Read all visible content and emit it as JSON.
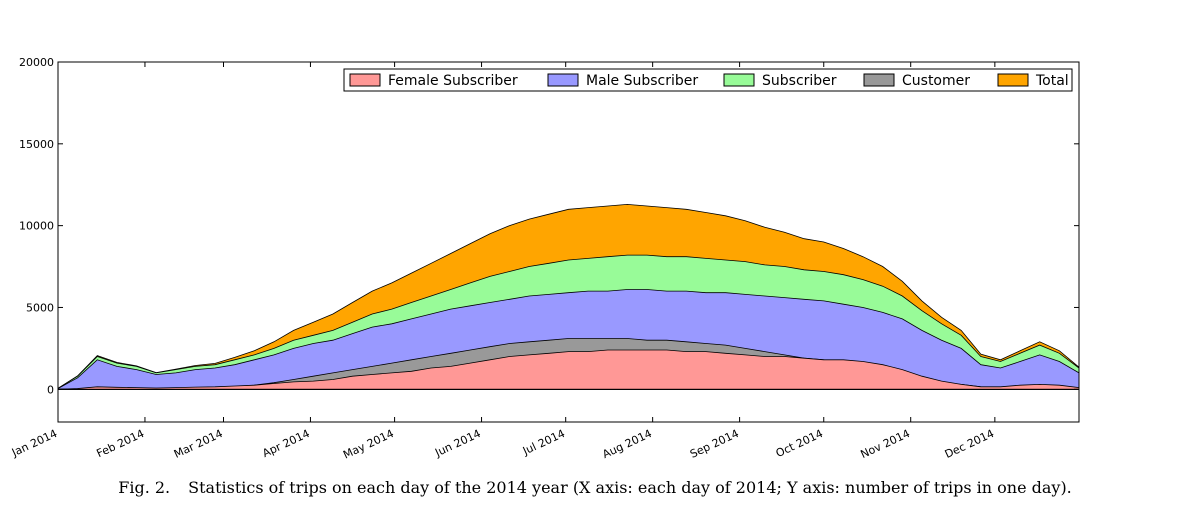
{
  "caption": {
    "label": "Fig. 2.",
    "text": "Statistics of trips on each day of the 2014 year (X axis: each day of 2014; Y axis: number of trips in one day)."
  },
  "chart_data": {
    "type": "area",
    "title": "",
    "xlabel": "",
    "ylabel": "",
    "x_range": [
      "2014-01-01",
      "2014-12-31"
    ],
    "x_tick_labels": [
      "Jan 2014",
      "Feb 2014",
      "Mar 2014",
      "Apr 2014",
      "May 2014",
      "Jun 2014",
      "Jul 2014",
      "Aug 2014",
      "Sep 2014",
      "Oct 2014",
      "Nov 2014",
      "Dec 2014"
    ],
    "ylim": [
      -2000,
      20000
    ],
    "y_ticks": [
      0,
      5000,
      10000,
      15000,
      20000
    ],
    "legend_position": "top-right",
    "grid": false,
    "sampling": "weekly approximation of daily counts (week start dates)",
    "x": [
      "2014-01-01",
      "2014-01-08",
      "2014-01-15",
      "2014-01-22",
      "2014-01-29",
      "2014-02-05",
      "2014-02-12",
      "2014-02-19",
      "2014-02-26",
      "2014-03-05",
      "2014-03-12",
      "2014-03-19",
      "2014-03-26",
      "2014-04-02",
      "2014-04-09",
      "2014-04-16",
      "2014-04-23",
      "2014-04-30",
      "2014-05-07",
      "2014-05-14",
      "2014-05-21",
      "2014-05-28",
      "2014-06-04",
      "2014-06-11",
      "2014-06-18",
      "2014-06-25",
      "2014-07-02",
      "2014-07-09",
      "2014-07-16",
      "2014-07-23",
      "2014-07-30",
      "2014-08-06",
      "2014-08-13",
      "2014-08-20",
      "2014-08-27",
      "2014-09-03",
      "2014-09-10",
      "2014-09-17",
      "2014-09-24",
      "2014-10-01",
      "2014-10-08",
      "2014-10-15",
      "2014-10-22",
      "2014-10-29",
      "2014-11-05",
      "2014-11-12",
      "2014-11-19",
      "2014-11-26",
      "2014-12-03",
      "2014-12-10",
      "2014-12-17",
      "2014-12-24",
      "2014-12-31"
    ],
    "series": [
      {
        "name": "Female Subscriber",
        "color": "#ff9896",
        "values": [
          0,
          50,
          150,
          120,
          100,
          80,
          100,
          130,
          150,
          200,
          250,
          350,
          450,
          500,
          600,
          800,
          900,
          1000,
          1100,
          1300,
          1400,
          1600,
          1800,
          2000,
          2100,
          2200,
          2300,
          2300,
          2400,
          2400,
          2400,
          2400,
          2300,
          2300,
          2200,
          2100,
          2000,
          2000,
          1900,
          1800,
          1800,
          1700,
          1500,
          1200,
          800,
          500,
          300,
          150,
          150,
          250,
          300,
          250,
          100
        ]
      },
      {
        "name": "Male Subscriber",
        "color": "#9999ff",
        "values": [
          50,
          700,
          1800,
          1400,
          1200,
          900,
          1000,
          1200,
          1300,
          1500,
          1800,
          2100,
          2500,
          2800,
          3000,
          3400,
          3800,
          4000,
          4300,
          4600,
          4900,
          5100,
          5300,
          5500,
          5700,
          5800,
          5900,
          6000,
          6000,
          6100,
          6100,
          6000,
          6000,
          5900,
          5900,
          5800,
          5700,
          5600,
          5500,
          5400,
          5200,
          5000,
          4700,
          4300,
          3600,
          3000,
          2500,
          1500,
          1300,
          1700,
          2100,
          1700,
          1000
        ]
      },
      {
        "name": "Subscriber",
        "color": "#98fb98",
        "values": [
          60,
          800,
          2000,
          1600,
          1400,
          1000,
          1200,
          1400,
          1500,
          1800,
          2100,
          2500,
          3000,
          3300,
          3600,
          4100,
          4600,
          4900,
          5300,
          5700,
          6100,
          6500,
          6900,
          7200,
          7500,
          7700,
          7900,
          8000,
          8100,
          8200,
          8200,
          8100,
          8100,
          8000,
          7900,
          7800,
          7600,
          7500,
          7300,
          7200,
          7000,
          6700,
          6300,
          5700,
          4800,
          4000,
          3300,
          2000,
          1700,
          2200,
          2700,
          2200,
          1300
        ]
      },
      {
        "name": "Customer",
        "color": "#999999",
        "values": [
          5,
          20,
          60,
          40,
          30,
          20,
          30,
          50,
          80,
          150,
          250,
          400,
          600,
          800,
          1000,
          1200,
          1400,
          1600,
          1800,
          2000,
          2200,
          2400,
          2600,
          2800,
          2900,
          3000,
          3100,
          3100,
          3100,
          3100,
          3000,
          3000,
          2900,
          2800,
          2700,
          2500,
          2300,
          2100,
          1900,
          1800,
          1600,
          1400,
          1200,
          900,
          600,
          400,
          300,
          150,
          100,
          150,
          200,
          150,
          50
        ]
      },
      {
        "name": "Total",
        "color": "#ffa500",
        "values": [
          60,
          820,
          2060,
          1640,
          1430,
          1020,
          1230,
          1450,
          1580,
          1950,
          2350,
          2900,
          3600,
          4100,
          4600,
          5300,
          6000,
          6500,
          7100,
          7700,
          8300,
          8900,
          9500,
          10000,
          10400,
          10700,
          11000,
          11100,
          11200,
          11300,
          11200,
          11100,
          11000,
          10800,
          10600,
          10300,
          9900,
          9600,
          9200,
          9000,
          8600,
          8100,
          7500,
          6600,
          5400,
          4400,
          3600,
          2150,
          1800,
          2350,
          2900,
          2350,
          1350
        ]
      }
    ]
  }
}
